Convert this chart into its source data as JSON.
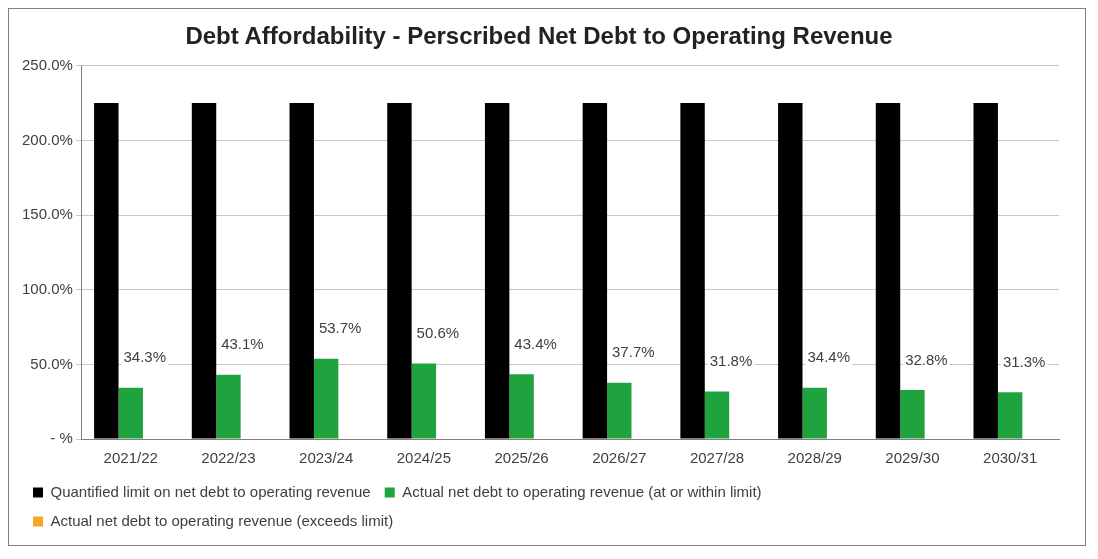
{
  "chart_data": {
    "type": "bar",
    "title": "Debt Affordability - Perscribed Net Debt to Operating Revenue",
    "categories": [
      "2021/22",
      "2022/23",
      "2023/24",
      "2024/25",
      "2025/26",
      "2026/27",
      "2027/28",
      "2028/29",
      "2029/30",
      "2030/31"
    ],
    "series": [
      {
        "name": "Quantified limit on net debt to operating revenue",
        "color": "#000000",
        "values": [
          225,
          225,
          225,
          225,
          225,
          225,
          225,
          225,
          225,
          225
        ]
      },
      {
        "name": "Actual net debt to operating revenue (at or within limit)",
        "color": "#1fa33f",
        "values": [
          34.3,
          43.1,
          53.7,
          50.6,
          43.4,
          37.7,
          31.8,
          34.4,
          32.8,
          31.3
        ],
        "value_labels": [
          "34.3%",
          "43.1%",
          "53.7%",
          "50.6%",
          "43.4%",
          "37.7%",
          "31.8%",
          "34.4%",
          "32.8%",
          "31.3%"
        ]
      },
      {
        "name": "Actual net debt to operating revenue (exceeds limit)",
        "color": "#f5a623",
        "values": [
          null,
          null,
          null,
          null,
          null,
          null,
          null,
          null,
          null,
          null
        ]
      }
    ],
    "ylim": [
      0,
      250
    ],
    "yticks": [
      {
        "value": 0,
        "label": "- %"
      },
      {
        "value": 50,
        "label": "50.0%"
      },
      {
        "value": 100,
        "label": "100.0%"
      },
      {
        "value": 150,
        "label": "150.0%"
      },
      {
        "value": 200,
        "label": "200.0%"
      },
      {
        "value": 250,
        "label": "250.0%"
      }
    ],
    "grid": "y",
    "legend": "bottom"
  }
}
